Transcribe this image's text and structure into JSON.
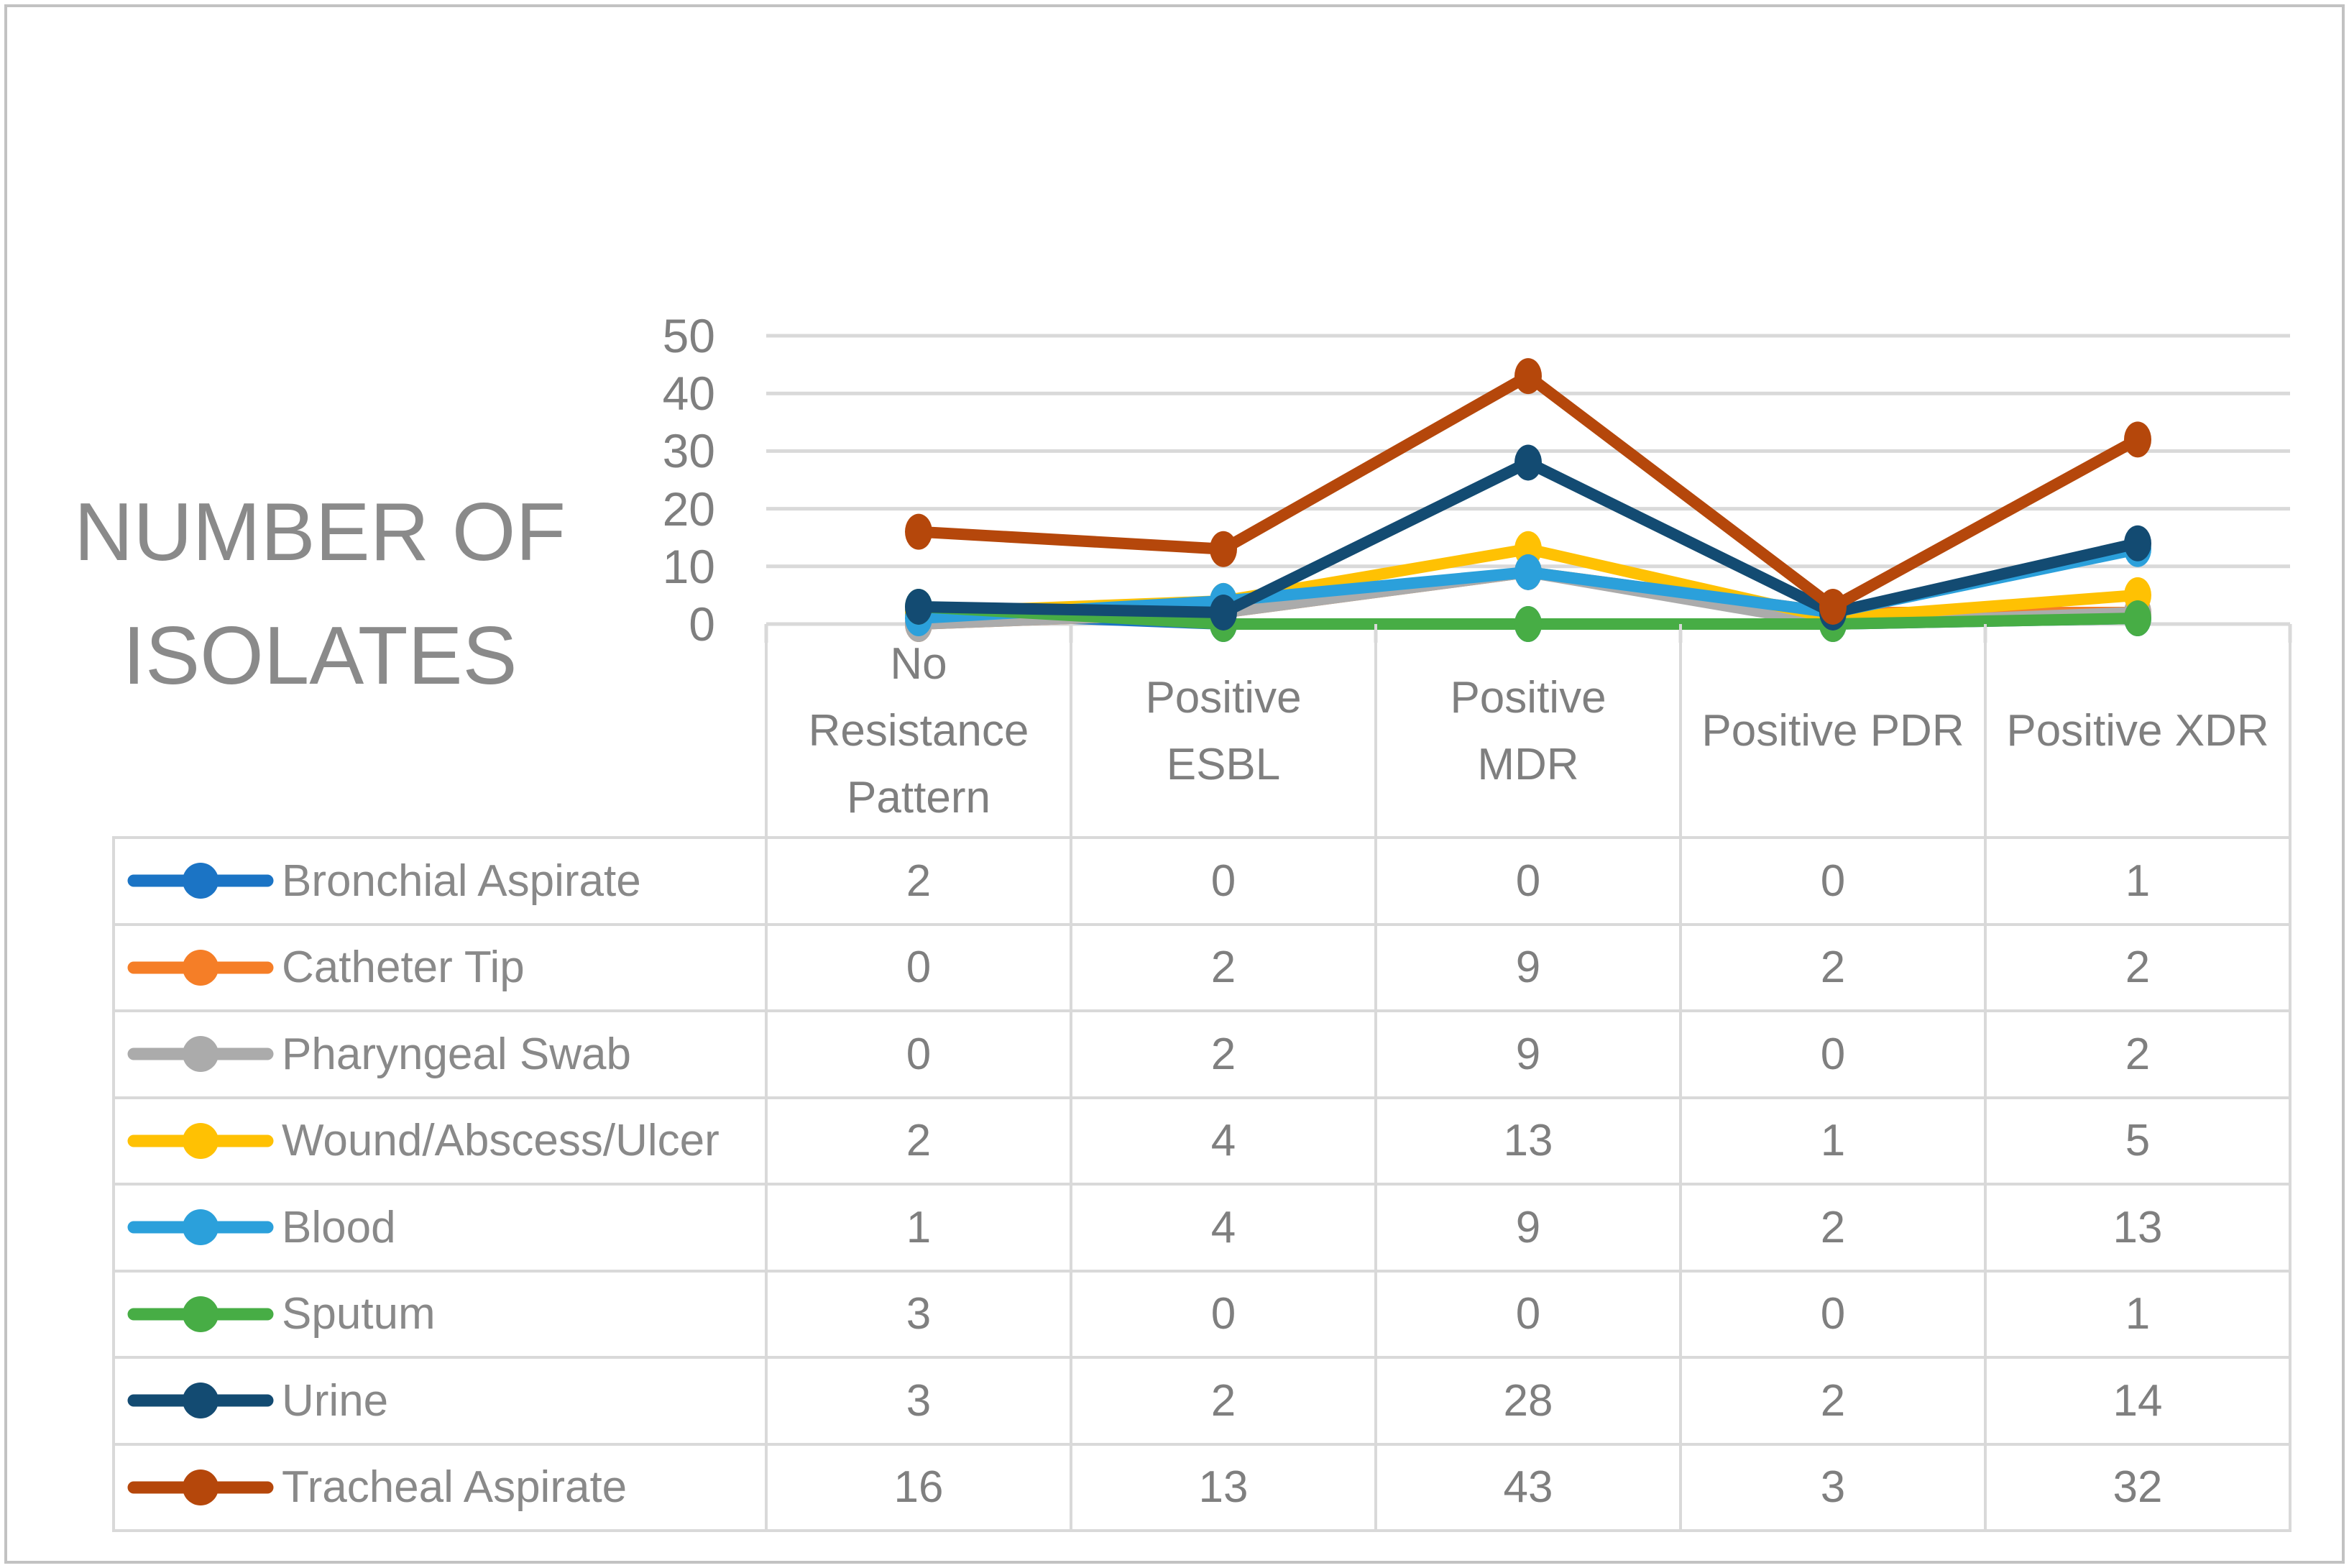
{
  "chart_data": {
    "type": "line",
    "y_axis_title_lines": [
      "NUMBER OF",
      "ISOLATES"
    ],
    "y_axis_title": "NUMBER OF ISOLATES",
    "xlabel": "",
    "ylabel": "NUMBER OF ISOLATES",
    "ylim": [
      0,
      50
    ],
    "y_ticks": [
      50,
      40,
      30,
      20,
      10,
      0
    ],
    "grid": true,
    "legend_position": "table-left",
    "categories": [
      "No Resistance Pattern",
      "Positive ESBL",
      "Positive MDR",
      "Positive PDR",
      "Positive XDR"
    ],
    "category_label_lines": [
      [
        "No",
        "Resistance",
        "Pattern"
      ],
      [
        "Positive",
        "ESBL"
      ],
      [
        "Positive",
        "MDR"
      ],
      [
        "Positive PDR"
      ],
      [
        "Positive XDR"
      ]
    ],
    "series": [
      {
        "name": "Bronchial Aspirate",
        "color": "#1B74C5",
        "values": [
          2,
          0,
          0,
          0,
          1
        ]
      },
      {
        "name": "Catheter Tip",
        "color": "#F57E27",
        "values": [
          0,
          2,
          9,
          2,
          2
        ]
      },
      {
        "name": "Pharyngeal Swab",
        "color": "#ABABAB",
        "values": [
          0,
          2,
          9,
          0,
          2
        ]
      },
      {
        "name": "Wound/Abscess/Ulcer",
        "color": "#FFC103",
        "values": [
          2,
          4,
          13,
          1,
          5
        ]
      },
      {
        "name": "Blood",
        "color": "#2BA0DB",
        "values": [
          1,
          4,
          9,
          2,
          13
        ]
      },
      {
        "name": "Sputum",
        "color": "#47AD45",
        "values": [
          3,
          0,
          0,
          0,
          1
        ]
      },
      {
        "name": "Urine",
        "color": "#134B72",
        "values": [
          3,
          2,
          28,
          2,
          14
        ]
      },
      {
        "name": "Tracheal Aspirate",
        "color": "#B5470B",
        "values": [
          16,
          13,
          43,
          3,
          32
        ]
      }
    ]
  },
  "colors": {
    "gridline": "#D9D9D9",
    "table_border": "#D9D9D9",
    "outer_frame": "#C2C2C2",
    "axis_text": "#7F7F7F",
    "title_text": "#8A8A8A",
    "legend_text": "#898989",
    "background": "#FFFFFF"
  }
}
